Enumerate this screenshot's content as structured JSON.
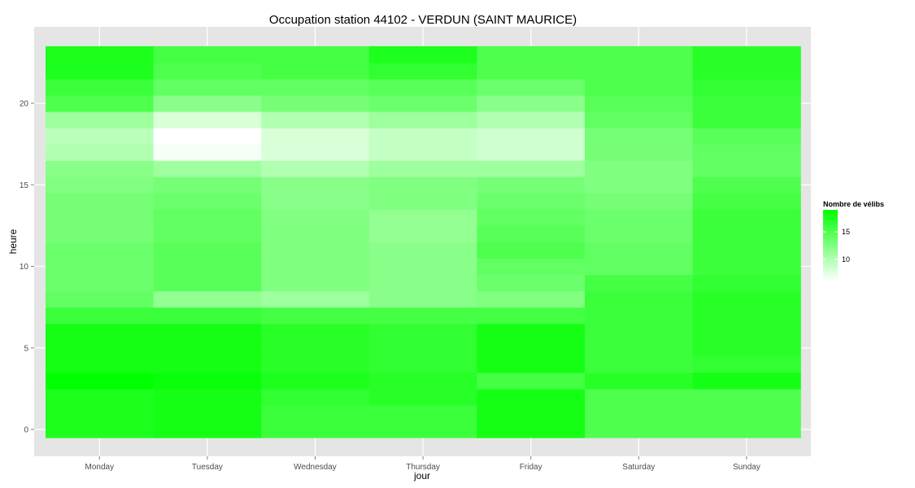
{
  "chart_data": {
    "type": "heatmap",
    "title": "Occupation station 44102 - VERDUN (SAINT MAURICE)",
    "xlabel": "jour",
    "ylabel": "heure",
    "x_categories": [
      "Monday",
      "Tuesday",
      "Wednesday",
      "Thursday",
      "Friday",
      "Saturday",
      "Sunday"
    ],
    "y_range": [
      0,
      23
    ],
    "y_ticks": [
      0,
      5,
      10,
      15,
      20
    ],
    "color_scale": {
      "low_color": "#ffffff",
      "high_color": "#00ff00",
      "min": 6,
      "max": 19
    },
    "legend": {
      "title": "Nombre de vélibs",
      "ticks": [
        10,
        15
      ],
      "position": "right"
    },
    "grid": true,
    "values": {
      "Monday": [
        17.5,
        17.5,
        17.5,
        19.0,
        18.0,
        18.0,
        18.0,
        16.0,
        14.0,
        13.5,
        13.5,
        13.5,
        13.0,
        13.0,
        13.0,
        12.5,
        12.0,
        10.0,
        9.5,
        11.0,
        15.0,
        16.0,
        17.5,
        17.5
      ],
      "Tuesday": [
        18.0,
        18.0,
        18.0,
        18.5,
        18.0,
        18.0,
        18.0,
        16.0,
        11.5,
        14.5,
        14.5,
        14.5,
        14.0,
        14.0,
        13.5,
        13.0,
        11.0,
        6.5,
        6.0,
        8.0,
        12.0,
        14.0,
        15.0,
        15.5
      ],
      "Wednesday": [
        16.0,
        16.0,
        16.5,
        17.5,
        17.0,
        17.0,
        17.0,
        15.5,
        11.0,
        12.5,
        12.5,
        12.5,
        12.5,
        12.5,
        12.0,
        12.0,
        10.0,
        8.0,
        8.0,
        10.0,
        13.0,
        14.0,
        15.5,
        15.5
      ],
      "Thursday": [
        16.0,
        16.0,
        17.0,
        17.0,
        16.5,
        16.5,
        16.5,
        15.5,
        12.0,
        12.0,
        12.0,
        12.0,
        11.5,
        11.5,
        12.5,
        12.5,
        11.0,
        9.0,
        9.0,
        11.0,
        13.5,
        14.5,
        16.5,
        17.5
      ],
      "Friday": [
        18.0,
        18.0,
        18.0,
        15.5,
        18.0,
        18.0,
        18.0,
        15.5,
        12.5,
        13.5,
        14.0,
        15.0,
        14.5,
        14.0,
        13.5,
        13.0,
        11.0,
        8.5,
        8.5,
        10.0,
        12.0,
        13.5,
        15.0,
        15.0
      ],
      "Saturday": [
        15.0,
        15.0,
        15.0,
        17.0,
        16.0,
        16.0,
        16.0,
        16.0,
        16.0,
        15.5,
        14.0,
        14.0,
        13.5,
        13.5,
        13.0,
        12.5,
        12.5,
        13.0,
        13.0,
        14.0,
        14.5,
        15.0,
        15.0,
        15.0
      ],
      "Sunday": [
        15.0,
        15.0,
        15.0,
        18.0,
        16.5,
        17.0,
        17.0,
        17.0,
        17.0,
        16.5,
        16.0,
        16.0,
        16.0,
        16.0,
        15.5,
        15.0,
        14.0,
        14.0,
        14.5,
        16.0,
        16.0,
        16.5,
        17.0,
        17.0
      ]
    }
  }
}
